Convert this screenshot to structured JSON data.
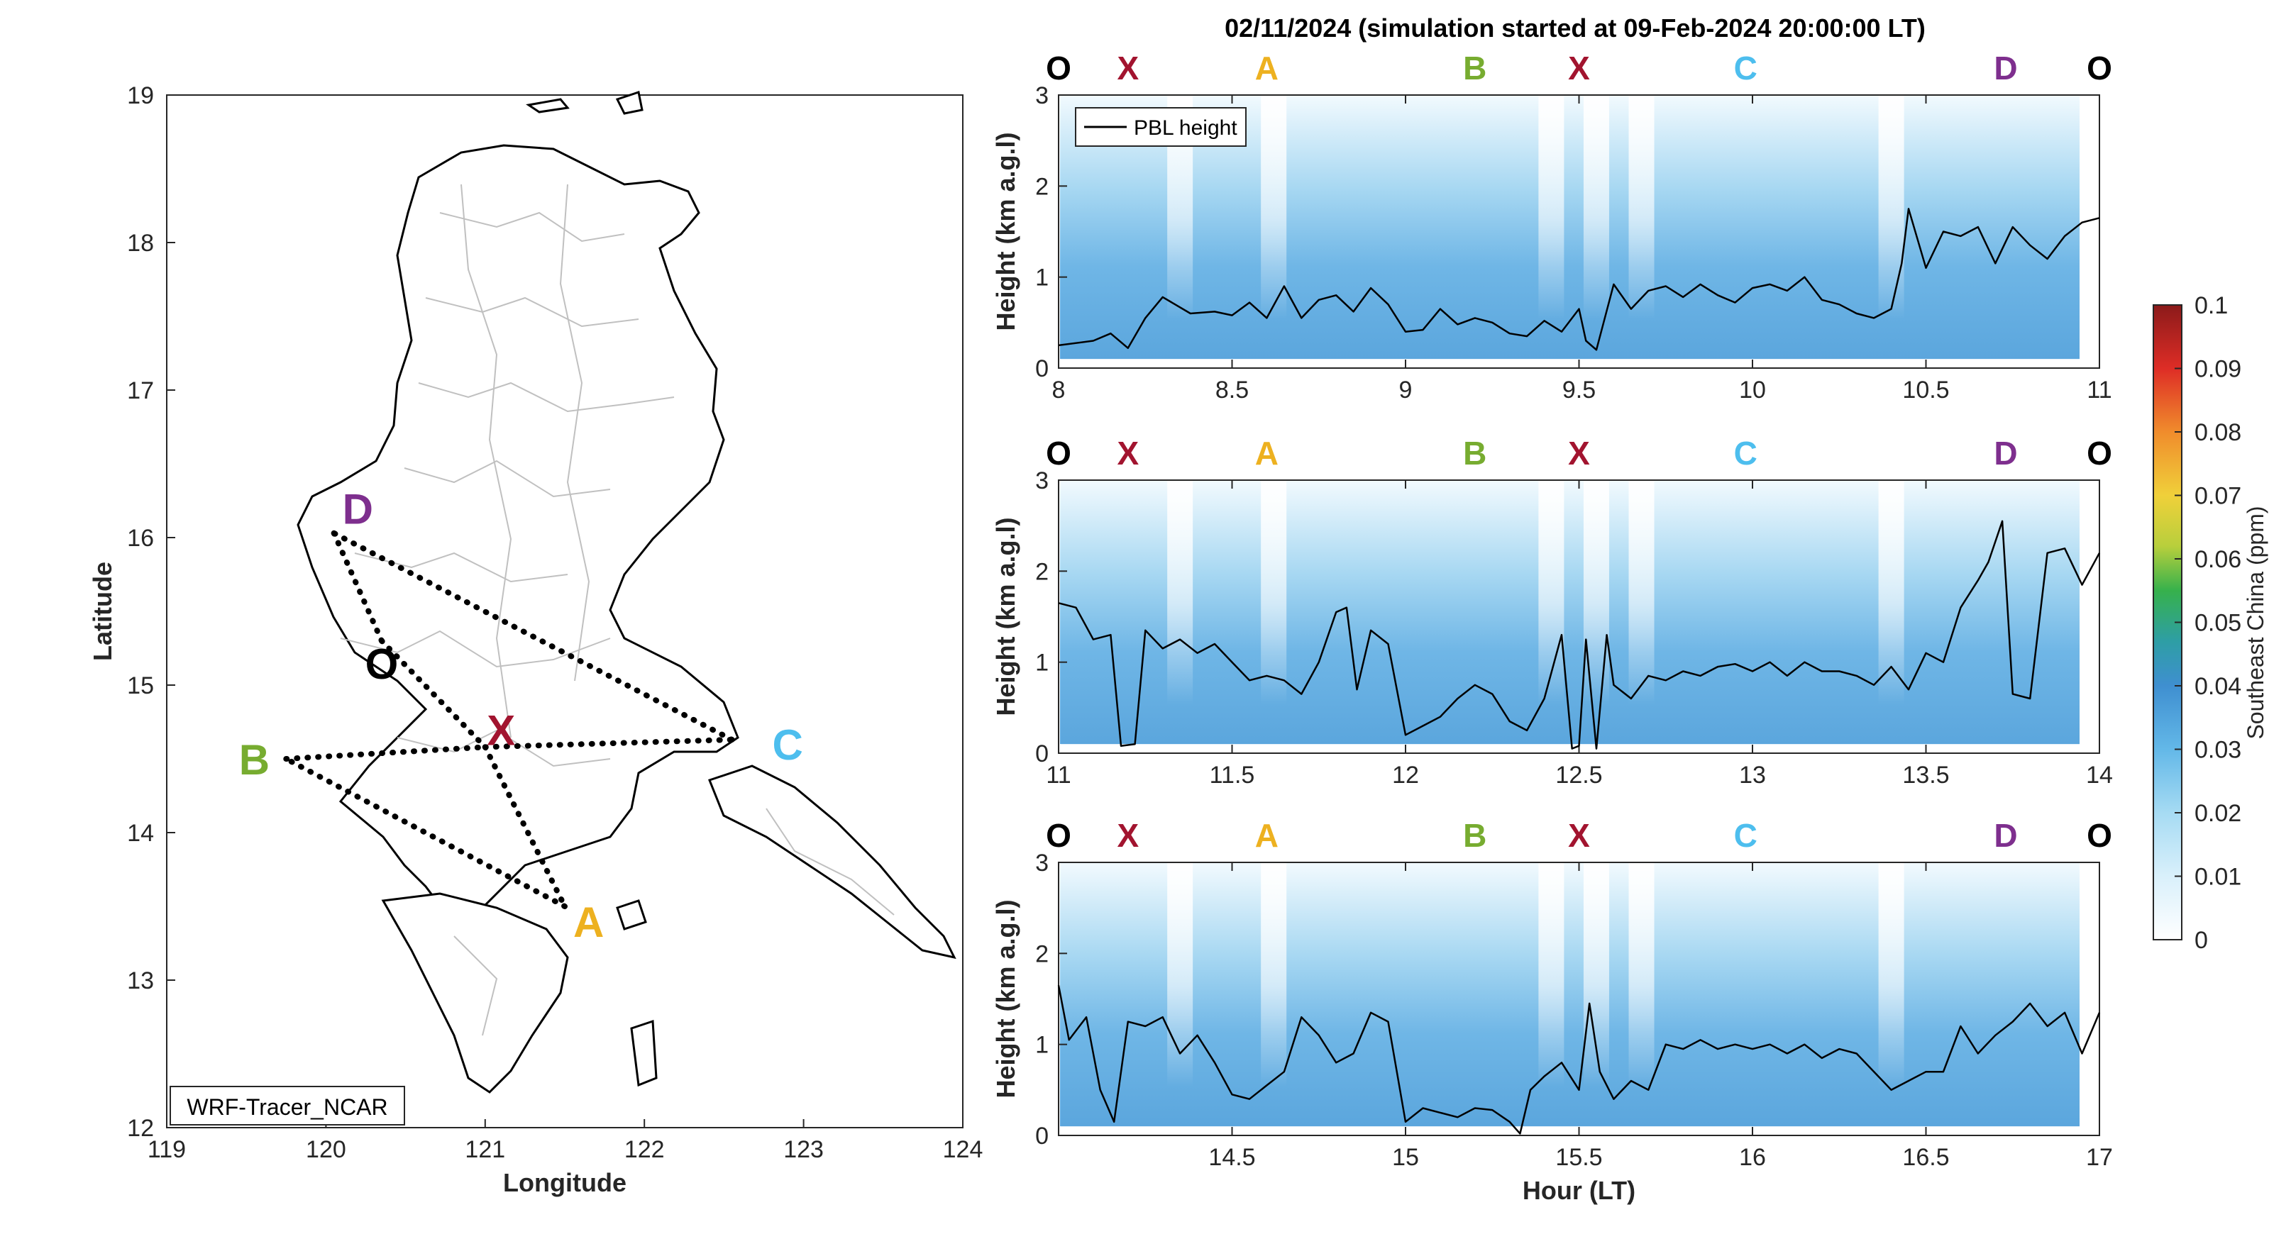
{
  "figure_title": "02/11/2024 (simulation started at 09-Feb-2024 20:00:00 LT)",
  "colors": {
    "O": "#000000",
    "X": "#A2142F",
    "A": "#EDB120",
    "B": "#77AC30",
    "C": "#4DBEEE",
    "D": "#7E2F8E",
    "pbl_line": "#000000",
    "route": "#000000",
    "map_borders": "#bdbdbd",
    "coast": "#000000"
  },
  "chart_data": [
    {
      "type": "map",
      "xlabel": "Longitude",
      "ylabel": "Latitude",
      "xlim": [
        119,
        124
      ],
      "ylim": [
        12,
        19
      ],
      "xticks": [
        "119",
        "120",
        "121",
        "122",
        "123",
        "124"
      ],
      "yticks": [
        "12",
        "13",
        "14",
        "15",
        "16",
        "17",
        "18",
        "19"
      ],
      "annotation": "WRF-Tracer_NCAR",
      "grid": false,
      "waypoints": [
        {
          "name": "D",
          "lon": 120.2,
          "lat": 16.2
        },
        {
          "name": "O",
          "lon": 120.35,
          "lat": 15.15
        },
        {
          "name": "X",
          "lon": 121.1,
          "lat": 14.7
        },
        {
          "name": "B",
          "lon": 119.55,
          "lat": 14.5
        },
        {
          "name": "C",
          "lon": 122.9,
          "lat": 14.6
        },
        {
          "name": "A",
          "lon": 121.65,
          "lat": 13.4
        }
      ],
      "route_points": [
        {
          "lon": 120.05,
          "lat": 16.03
        },
        {
          "lon": 120.35,
          "lat": 15.3
        },
        {
          "lon": 121.0,
          "lat": 14.58
        },
        {
          "lon": 121.5,
          "lat": 13.5
        },
        {
          "lon": 119.75,
          "lat": 14.5
        },
        {
          "lon": 122.55,
          "lat": 14.63
        }
      ],
      "route_segments": [
        [
          0,
          1
        ],
        [
          1,
          2
        ],
        [
          2,
          3
        ],
        [
          3,
          4
        ],
        [
          4,
          2
        ],
        [
          2,
          5
        ],
        [
          5,
          0
        ]
      ]
    },
    {
      "type": "heatmap",
      "xlim": [
        8,
        11
      ],
      "xticks": [
        "8",
        "8.5",
        "9",
        "9.5",
        "10",
        "10.5",
        "11"
      ],
      "ylim": [
        0,
        3
      ],
      "yticks": [
        "0",
        "1",
        "2",
        "3"
      ],
      "ylabel": "Height (km a.g.l)",
      "legend": {
        "entries": [
          "PBL height"
        ],
        "placement": "top-left"
      },
      "waypoint_labels": [
        "O",
        "X",
        "A",
        "B",
        "X",
        "C",
        "D",
        "O"
      ],
      "waypoint_hours": [
        8.0,
        8.2,
        8.6,
        9.2,
        9.5,
        9.98,
        10.73,
        11.0
      ],
      "light_columns": [
        8.35,
        8.62,
        9.42,
        9.55,
        9.68,
        10.4
      ],
      "series": [
        {
          "name": "PBL height",
          "x": [
            8.0,
            8.1,
            8.15,
            8.2,
            8.25,
            8.3,
            8.38,
            8.45,
            8.5,
            8.55,
            8.6,
            8.65,
            8.7,
            8.75,
            8.8,
            8.85,
            8.9,
            8.95,
            9.0,
            9.05,
            9.1,
            9.15,
            9.2,
            9.25,
            9.3,
            9.35,
            9.4,
            9.45,
            9.5,
            9.52,
            9.55,
            9.6,
            9.65,
            9.7,
            9.75,
            9.8,
            9.85,
            9.9,
            9.95,
            10.0,
            10.05,
            10.1,
            10.15,
            10.2,
            10.25,
            10.3,
            10.35,
            10.4,
            10.43,
            10.45,
            10.5,
            10.55,
            10.6,
            10.65,
            10.7,
            10.75,
            10.8,
            10.85,
            10.9,
            10.95,
            11.0
          ],
          "y": [
            0.25,
            0.3,
            0.38,
            0.22,
            0.55,
            0.78,
            0.6,
            0.62,
            0.58,
            0.72,
            0.55,
            0.9,
            0.55,
            0.75,
            0.8,
            0.62,
            0.88,
            0.7,
            0.4,
            0.42,
            0.65,
            0.48,
            0.55,
            0.5,
            0.38,
            0.35,
            0.52,
            0.4,
            0.65,
            0.3,
            0.2,
            0.92,
            0.65,
            0.85,
            0.9,
            0.78,
            0.92,
            0.8,
            0.72,
            0.88,
            0.92,
            0.85,
            1.0,
            0.75,
            0.7,
            0.6,
            0.55,
            0.65,
            1.15,
            1.75,
            1.1,
            1.5,
            1.45,
            1.55,
            1.15,
            1.55,
            1.35,
            1.2,
            1.45,
            1.6,
            1.65
          ]
        }
      ]
    },
    {
      "type": "heatmap",
      "xlim": [
        11,
        14
      ],
      "xticks": [
        "11",
        "11.5",
        "12",
        "12.5",
        "13",
        "13.5",
        "14"
      ],
      "ylim": [
        0,
        3
      ],
      "yticks": [
        "0",
        "1",
        "2",
        "3"
      ],
      "ylabel": "Height (km a.g.l)",
      "waypoint_labels": [
        "O",
        "X",
        "A",
        "B",
        "X",
        "C",
        "D",
        "O"
      ],
      "waypoint_hours": [
        11.0,
        11.2,
        11.6,
        12.2,
        12.5,
        12.98,
        13.73,
        14.0
      ],
      "light_columns": [
        11.35,
        11.62,
        12.42,
        12.55,
        12.68,
        13.4
      ],
      "series": [
        {
          "name": "PBL height",
          "x": [
            11.0,
            11.05,
            11.1,
            11.15,
            11.18,
            11.22,
            11.25,
            11.3,
            11.35,
            11.4,
            11.45,
            11.5,
            11.55,
            11.6,
            11.65,
            11.7,
            11.75,
            11.8,
            11.83,
            11.86,
            11.9,
            11.95,
            12.0,
            12.05,
            12.1,
            12.15,
            12.2,
            12.25,
            12.3,
            12.35,
            12.4,
            12.45,
            12.48,
            12.5,
            12.52,
            12.55,
            12.58,
            12.6,
            12.65,
            12.7,
            12.75,
            12.8,
            12.85,
            12.9,
            12.95,
            13.0,
            13.05,
            13.1,
            13.15,
            13.2,
            13.25,
            13.3,
            13.35,
            13.4,
            13.45,
            13.5,
            13.55,
            13.6,
            13.65,
            13.68,
            13.72,
            13.75,
            13.8,
            13.85,
            13.9,
            13.95,
            14.0
          ],
          "y": [
            1.65,
            1.6,
            1.25,
            1.3,
            0.08,
            0.1,
            1.35,
            1.15,
            1.25,
            1.1,
            1.2,
            1.0,
            0.8,
            0.85,
            0.8,
            0.65,
            1.0,
            1.55,
            1.6,
            0.7,
            1.35,
            1.2,
            0.2,
            0.3,
            0.4,
            0.6,
            0.75,
            0.65,
            0.35,
            0.25,
            0.6,
            1.3,
            0.05,
            0.08,
            1.25,
            0.05,
            1.3,
            0.75,
            0.6,
            0.85,
            0.8,
            0.9,
            0.85,
            0.95,
            0.98,
            0.9,
            1.0,
            0.85,
            1.0,
            0.9,
            0.9,
            0.85,
            0.75,
            0.95,
            0.7,
            1.1,
            1.0,
            1.6,
            1.9,
            2.1,
            2.55,
            0.65,
            0.6,
            2.2,
            2.25,
            1.85,
            2.2
          ]
        }
      ]
    },
    {
      "type": "heatmap",
      "xlim": [
        14,
        17
      ],
      "xticks": [
        "14.5",
        "15",
        "15.5",
        "16",
        "16.5",
        "17"
      ],
      "ylim": [
        0,
        3
      ],
      "yticks": [
        "0",
        "1",
        "2",
        "3"
      ],
      "ylabel": "Height (km a.g.l)",
      "xlabel": "Hour (LT)",
      "waypoint_labels": [
        "O",
        "X",
        "A",
        "B",
        "X",
        "C",
        "D",
        "O"
      ],
      "waypoint_hours": [
        14.0,
        14.2,
        14.6,
        15.2,
        15.5,
        15.98,
        16.73,
        17.0
      ],
      "light_columns": [
        14.35,
        14.62,
        15.42,
        15.55,
        15.68,
        16.4
      ],
      "series": [
        {
          "name": "PBL height",
          "x": [
            14.0,
            14.03,
            14.08,
            14.12,
            14.16,
            14.2,
            14.25,
            14.3,
            14.35,
            14.4,
            14.45,
            14.5,
            14.55,
            14.6,
            14.65,
            14.7,
            14.75,
            14.8,
            14.85,
            14.9,
            14.95,
            15.0,
            15.05,
            15.1,
            15.15,
            15.2,
            15.25,
            15.3,
            15.33,
            15.36,
            15.4,
            15.45,
            15.5,
            15.53,
            15.56,
            15.6,
            15.65,
            15.7,
            15.75,
            15.8,
            15.85,
            15.9,
            15.95,
            16.0,
            16.05,
            16.1,
            16.15,
            16.2,
            16.25,
            16.3,
            16.35,
            16.4,
            16.45,
            16.5,
            16.55,
            16.6,
            16.65,
            16.7,
            16.75,
            16.8,
            16.85,
            16.9,
            16.95,
            17.0
          ],
          "y": [
            1.65,
            1.05,
            1.3,
            0.5,
            0.15,
            1.25,
            1.2,
            1.3,
            0.9,
            1.1,
            0.8,
            0.45,
            0.4,
            0.55,
            0.7,
            1.3,
            1.1,
            0.8,
            0.9,
            1.35,
            1.25,
            0.15,
            0.3,
            0.25,
            0.2,
            0.3,
            0.28,
            0.15,
            0.02,
            0.5,
            0.65,
            0.8,
            0.5,
            1.45,
            0.7,
            0.4,
            0.6,
            0.5,
            1.0,
            0.95,
            1.05,
            0.95,
            1.0,
            0.95,
            1.0,
            0.9,
            1.0,
            0.85,
            0.95,
            0.9,
            0.7,
            0.5,
            0.6,
            0.7,
            0.7,
            1.2,
            0.9,
            1.1,
            1.25,
            1.45,
            1.2,
            1.35,
            0.9,
            1.35
          ]
        }
      ]
    }
  ],
  "colorbar": {
    "label": "Southeast China (ppm)",
    "ticks": [
      "0",
      "0.01",
      "0.02",
      "0.03",
      "0.04",
      "0.05",
      "0.06",
      "0.07",
      "0.08",
      "0.09",
      "0.1"
    ],
    "range": [
      0,
      0.1
    ],
    "colors": [
      "#ffffff",
      "#d9f0fb",
      "#a6dbf3",
      "#63b8e8",
      "#3f8fd0",
      "#2e9ea5",
      "#36b14c",
      "#b8cf3c",
      "#f0d03a",
      "#f08c2c",
      "#de2d26",
      "#8b1a1a"
    ]
  }
}
